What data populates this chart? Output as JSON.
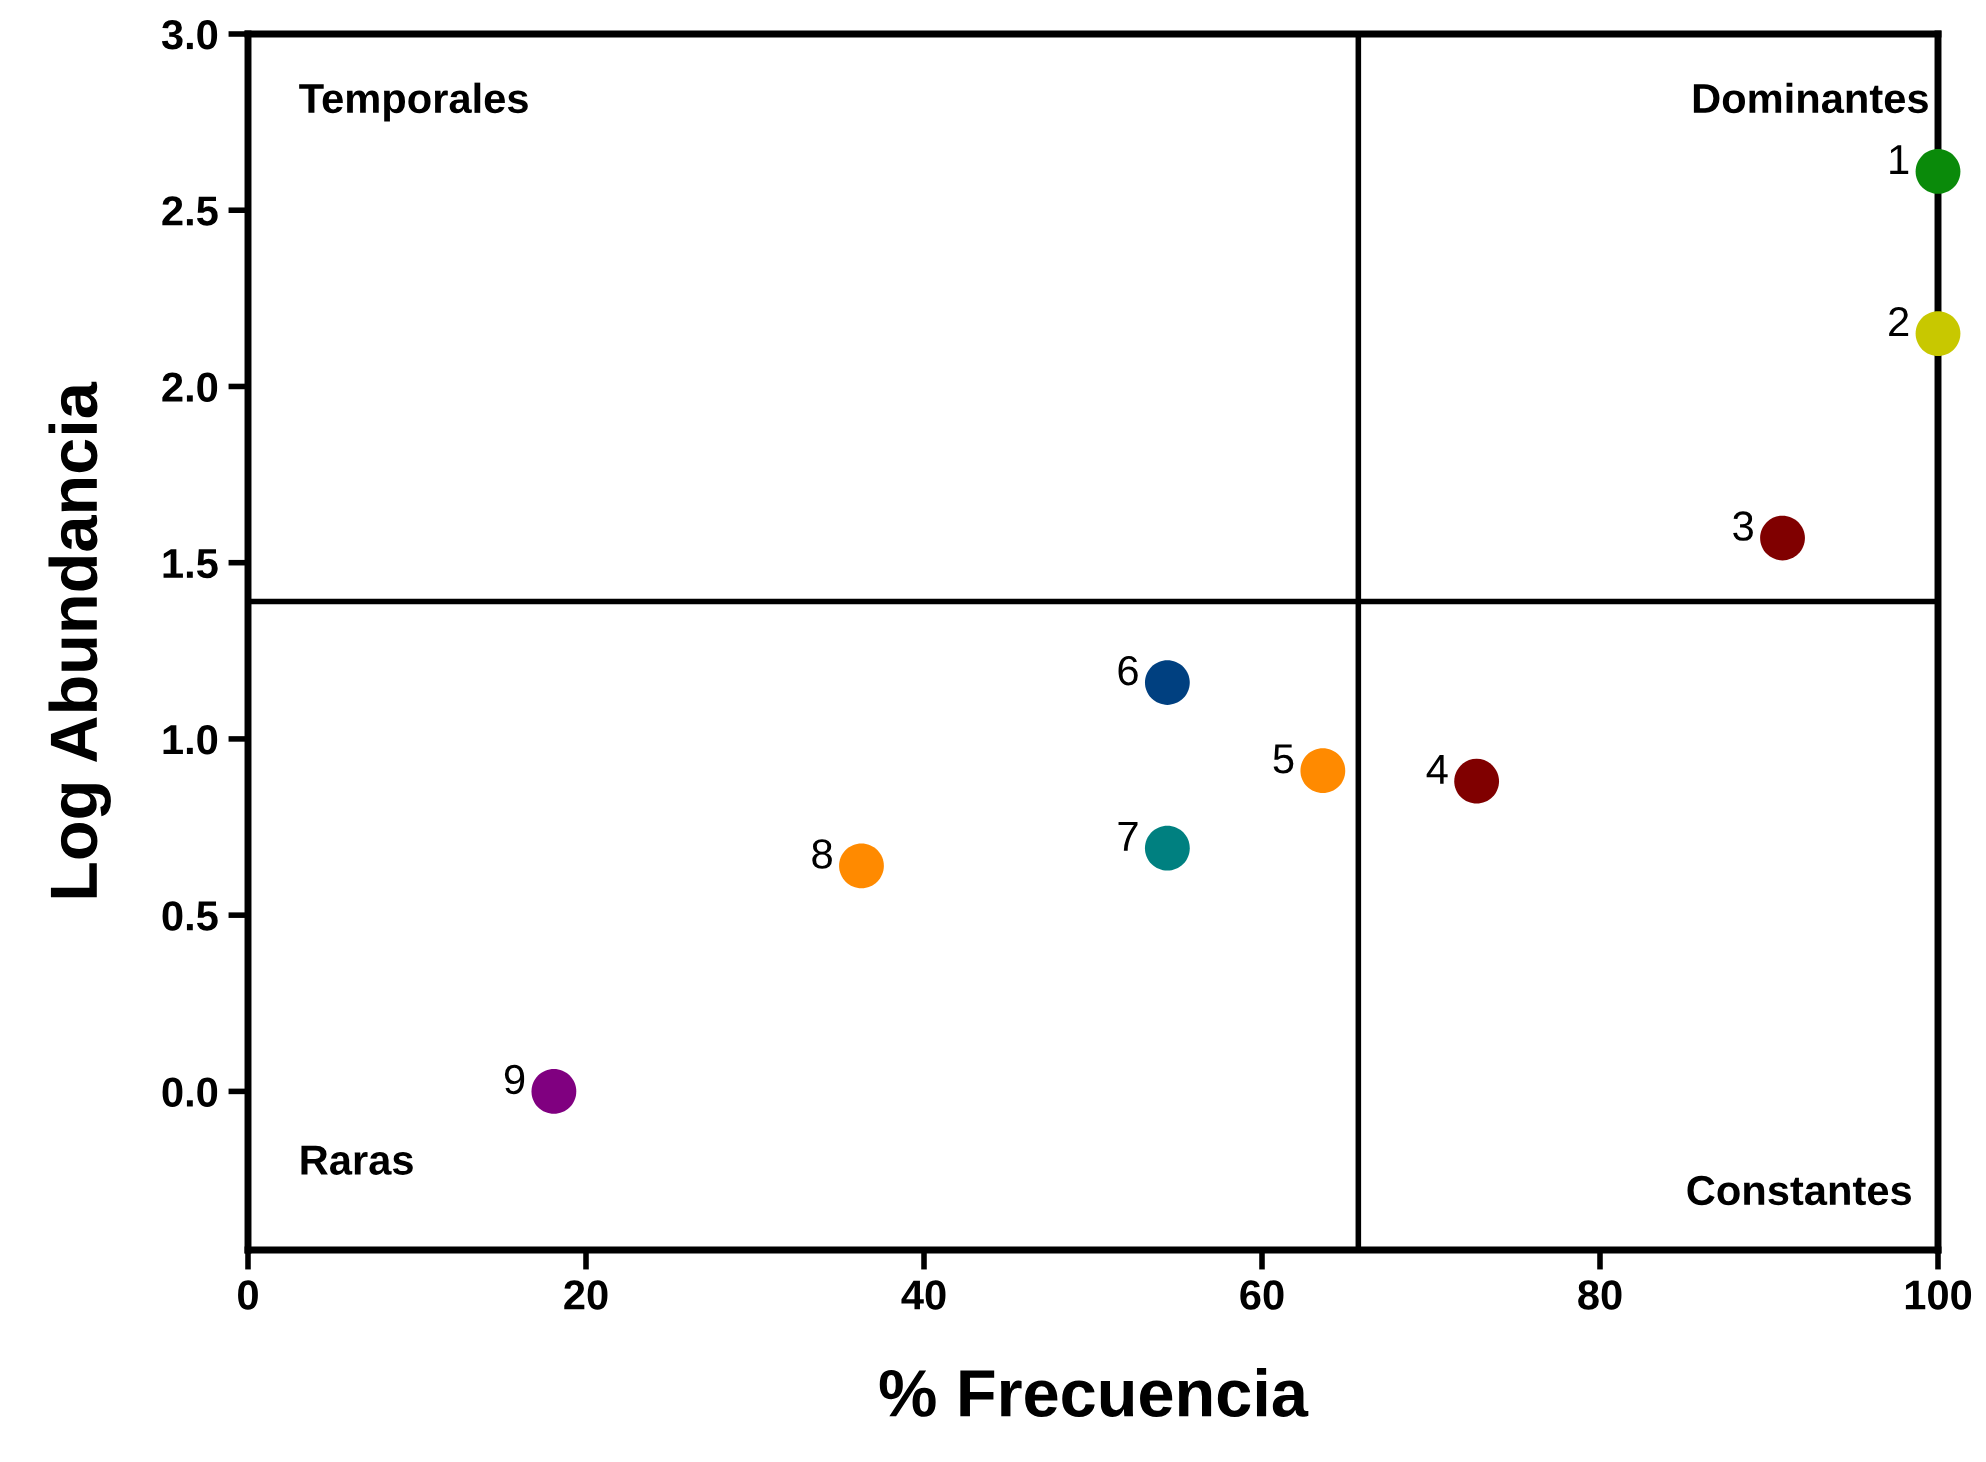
{
  "chart_data": {
    "type": "scatter",
    "xlabel": "% Frecuencia",
    "ylabel": "Log Abundancia",
    "x": [
      100,
      100,
      90.8,
      72.7,
      63.6,
      54.4,
      54.4,
      36.3,
      18.1
    ],
    "values": [
      2.61,
      2.15,
      1.57,
      0.88,
      0.91,
      1.16,
      0.69,
      0.64,
      0.0
    ],
    "colors": [
      "#0a8a0a",
      "#c8c800",
      "#800000",
      "#800000",
      "#ff8a00",
      "#004080",
      "#008080",
      "#ff8a00",
      "#800080"
    ],
    "xlim": [
      0,
      100
    ],
    "xticks": [
      0,
      20,
      40,
      60,
      80,
      100
    ],
    "ylim": [
      -0.45,
      3.0
    ],
    "yticks": [
      {
        "value": 0,
        "label": "0.0"
      },
      {
        "value": 0.5,
        "label": "0.5"
      },
      {
        "value": 1,
        "label": "1.0"
      },
      {
        "value": 1.5,
        "label": "1.5"
      },
      {
        "value": 2,
        "label": "2.0"
      },
      {
        "value": 2.5,
        "label": "2.5"
      },
      {
        "value": 3,
        "label": "3.0"
      }
    ],
    "ref_lines": [
      {
        "axis": "x",
        "value": 65.7,
        "color": "#000000"
      },
      {
        "axis": "y",
        "value": 1.39,
        "color": "#000000"
      }
    ],
    "annotations": [
      "Temporales",
      "Dominantes",
      "Raras",
      "Constantes",
      {
        "text": "1",
        "x": 100,
        "y": 2.61
      },
      {
        "text": "2",
        "x": 100,
        "y": 2.15
      },
      {
        "text": "3",
        "x": 90.8,
        "y": 1.57
      },
      {
        "text": "4",
        "x": 72.7,
        "y": 0.88
      },
      {
        "text": "5",
        "x": 63.6,
        "y": 0.91
      },
      {
        "text": "6",
        "x": 54.4,
        "y": 1.16
      },
      {
        "text": "7",
        "x": 54.4,
        "y": 0.69
      },
      {
        "text": "8",
        "x": 36.3,
        "y": 0.64
      },
      {
        "text": "9",
        "x": 18.1,
        "y": 0.0
      }
    ],
    "marker": "circle",
    "grid": false,
    "legend": false
  }
}
